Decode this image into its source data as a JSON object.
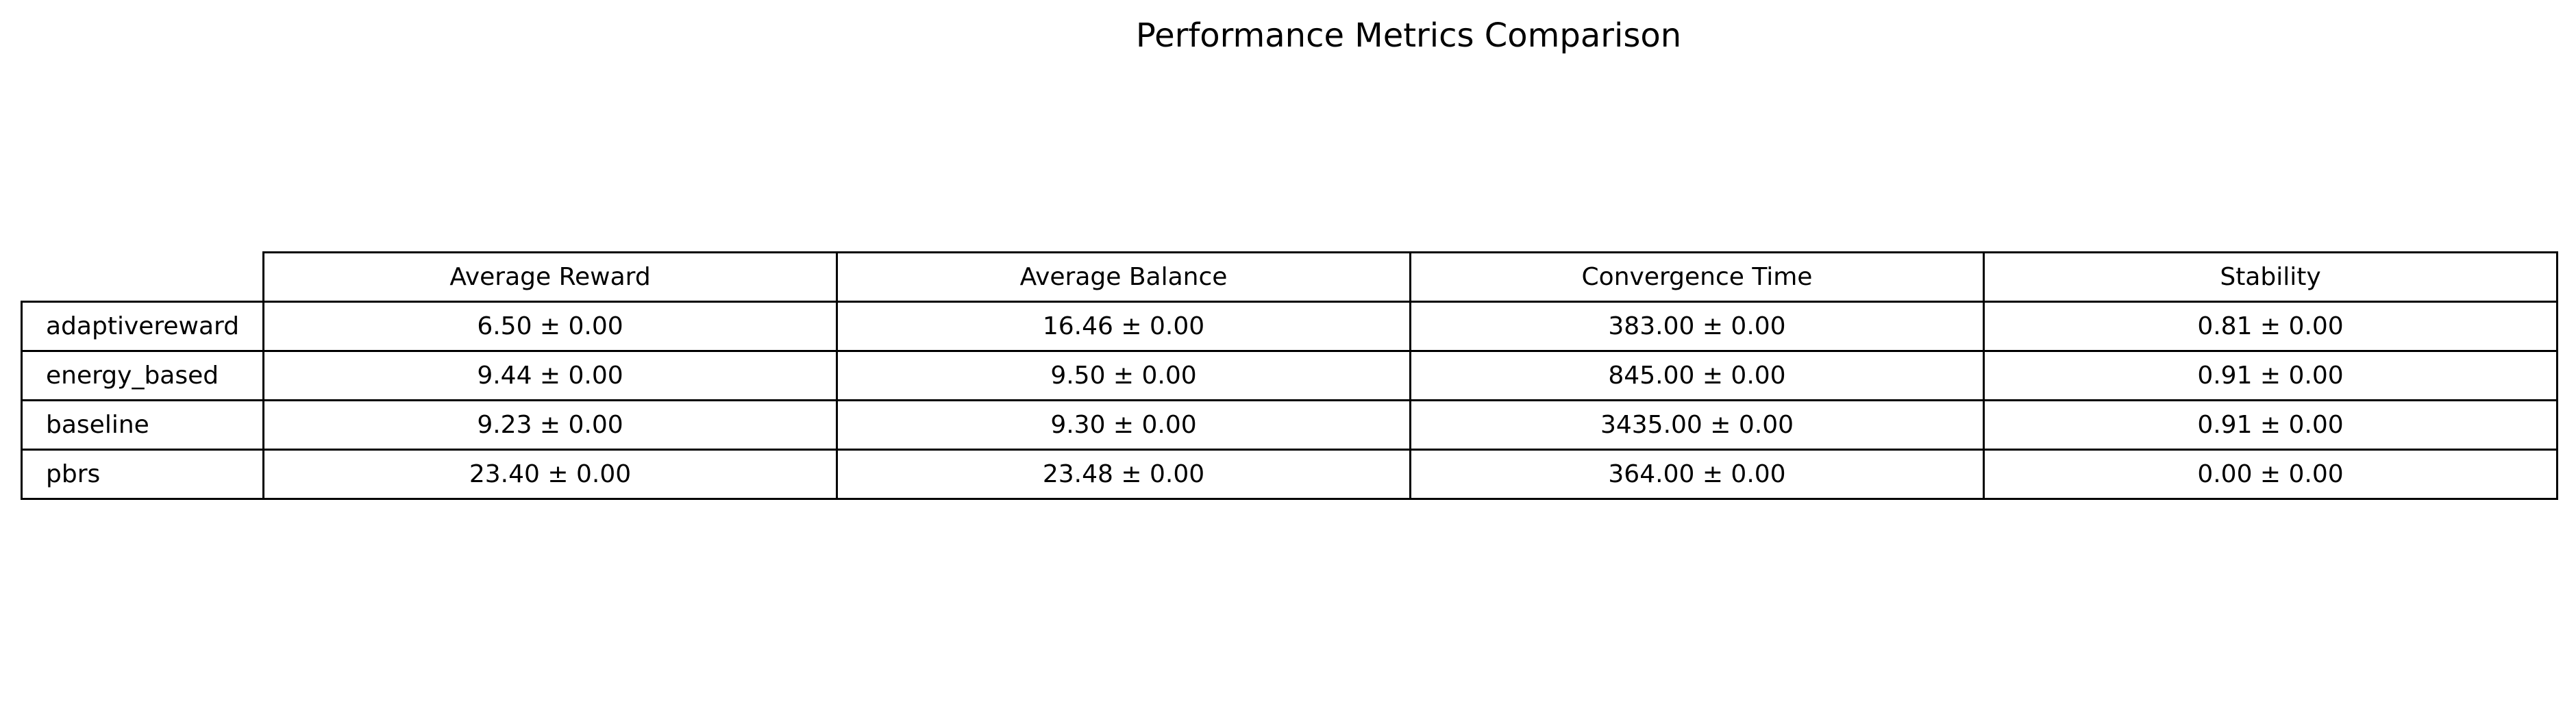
{
  "chart_data": {
    "type": "table",
    "title": "Performance Metrics Comparison",
    "columns": [
      "Average Reward",
      "Average Balance",
      "Convergence Time",
      "Stability"
    ],
    "rows": [
      {
        "label": "adaptivereward",
        "cells": [
          "6.50 ± 0.00",
          "16.46 ± 0.00",
          "383.00 ± 0.00",
          "0.81 ± 0.00"
        ]
      },
      {
        "label": "energy_based",
        "cells": [
          "9.44 ± 0.00",
          "9.50 ± 0.00",
          "845.00 ± 0.00",
          "0.91 ± 0.00"
        ]
      },
      {
        "label": "baseline",
        "cells": [
          "9.23 ± 0.00",
          "9.30 ± 0.00",
          "3435.00 ± 0.00",
          "0.91 ± 0.00"
        ]
      },
      {
        "label": "pbrs",
        "cells": [
          "23.40 ± 0.00",
          "23.48 ± 0.00",
          "364.00 ± 0.00",
          "0.00 ± 0.00"
        ]
      }
    ]
  }
}
